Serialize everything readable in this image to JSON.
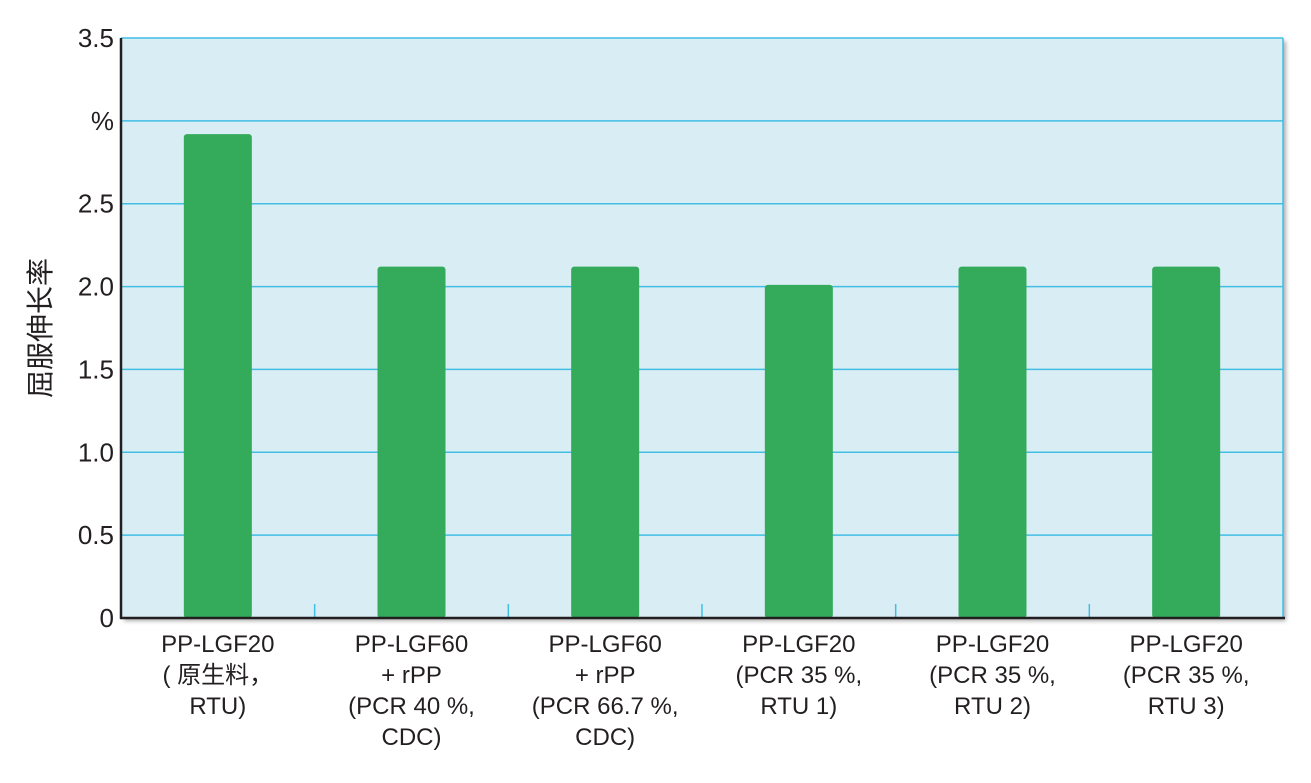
{
  "chart_data": {
    "type": "bar",
    "categories": [
      [
        "PP-LGF20",
        "( 原生料，",
        "RTU)"
      ],
      [
        "PP-LGF60",
        "+ rPP",
        "(PCR 40 %,",
        "CDC)"
      ],
      [
        "PP-LGF60",
        "+ rPP",
        "(PCR 66.7 %,",
        "CDC)"
      ],
      [
        "PP-LGF20",
        "(PCR 35 %,",
        "RTU 1)"
      ],
      [
        "PP-LGF20",
        "(PCR 35 %,",
        "RTU 2)"
      ],
      [
        "PP-LGF20",
        "(PCR 35 %,",
        "RTU 3)"
      ]
    ],
    "values": [
      2.92,
      2.12,
      2.12,
      2.01,
      2.12,
      2.12
    ],
    "ylabel": "屈服伸长率",
    "yunit": "%",
    "ylim": [
      0,
      3.5
    ],
    "yticks": [
      "0",
      "0.5",
      "1.0",
      "1.5",
      "2.0",
      "2.5",
      "%",
      "3.5"
    ],
    "ytick_values": [
      0,
      0.5,
      1.0,
      1.5,
      2.0,
      2.5,
      3.0,
      3.5
    ],
    "grid": true,
    "colors": {
      "bar": "#33ab5a",
      "plot_bg": "#d9edf5",
      "grid": "#41bfe3",
      "axis": "#231f20"
    }
  }
}
